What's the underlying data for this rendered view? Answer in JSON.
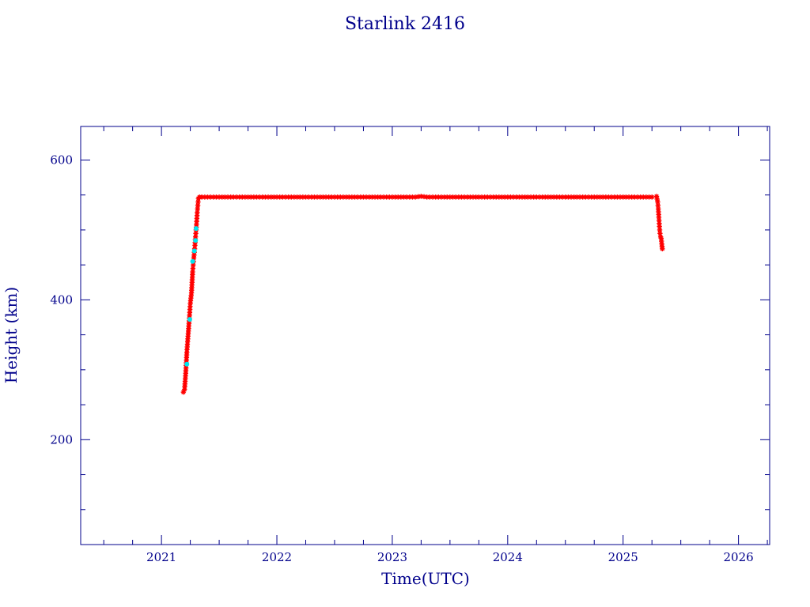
{
  "chart_data": {
    "type": "scatter",
    "title": "Starlink 2416",
    "xlabel": "Time(UTC)",
    "ylabel": "Height (km)",
    "xlim": [
      2020.3,
      2026.27
    ],
    "ylim": [
      50,
      648
    ],
    "x_ticks": [
      2021,
      2022,
      2023,
      2024,
      2025,
      2026
    ],
    "y_ticks": [
      200,
      400,
      600
    ],
    "x_minor_step": 0.25,
    "y_minor_step": 50,
    "grid": false,
    "legend": "none",
    "colors": {
      "axis": "#00008b",
      "series_main": "#ff0000",
      "series_highlight": "#00e5ee"
    },
    "series": [
      {
        "color": "#ff0000",
        "marker": "asterisk",
        "x": [
          2021.19,
          2021.2,
          2021.21,
          2021.22,
          2021.23,
          2021.24,
          2021.245,
          2021.25,
          2021.26,
          2021.265,
          2021.27,
          2021.275,
          2021.28,
          2021.285,
          2021.29,
          2021.295,
          2021.3,
          2021.305,
          2021.31,
          2021.315,
          2021.32,
          2021.33,
          2021.35,
          2021.4,
          2021.5,
          2021.6,
          2021.7,
          2021.8,
          2021.9,
          2022.0,
          2022.1,
          2022.2,
          2022.3,
          2022.4,
          2022.5,
          2022.6,
          2022.7,
          2022.8,
          2022.9,
          2023.0,
          2023.1,
          2023.2,
          2023.25,
          2023.3,
          2023.4,
          2023.5,
          2023.6,
          2023.7,
          2023.8,
          2023.9,
          2024.0,
          2024.1,
          2024.2,
          2024.3,
          2024.4,
          2024.5,
          2024.6,
          2024.7,
          2024.8,
          2024.9,
          2025.0,
          2025.1,
          2025.2,
          2025.25,
          2025.29,
          2025.3,
          2025.305,
          2025.31,
          2025.315,
          2025.32,
          2025.325,
          2025.33,
          2025.335,
          2025.34
        ],
        "y": [
          268,
          272,
          295,
          325,
          348,
          370,
          382,
          395,
          410,
          425,
          440,
          450,
          460,
          468,
          478,
          490,
          500,
          512,
          525,
          535,
          545,
          547,
          547,
          547,
          547,
          547,
          547,
          547,
          547,
          547,
          547,
          547,
          547,
          547,
          547,
          547,
          547,
          547,
          547,
          547,
          547,
          547,
          548,
          547,
          547,
          547,
          547,
          547,
          547,
          547,
          547,
          547,
          547,
          547,
          547,
          547,
          547,
          547,
          547,
          547,
          547,
          547,
          547,
          547,
          548,
          540,
          530,
          518,
          505,
          495,
          490,
          488,
          480,
          473
        ]
      },
      {
        "color": "#00e5ee",
        "marker": "dot",
        "x": [
          2021.22,
          2021.245,
          2021.27,
          2021.285,
          2021.295,
          2021.3
        ],
        "y": [
          308,
          372,
          455,
          470,
          485,
          502
        ]
      }
    ]
  }
}
